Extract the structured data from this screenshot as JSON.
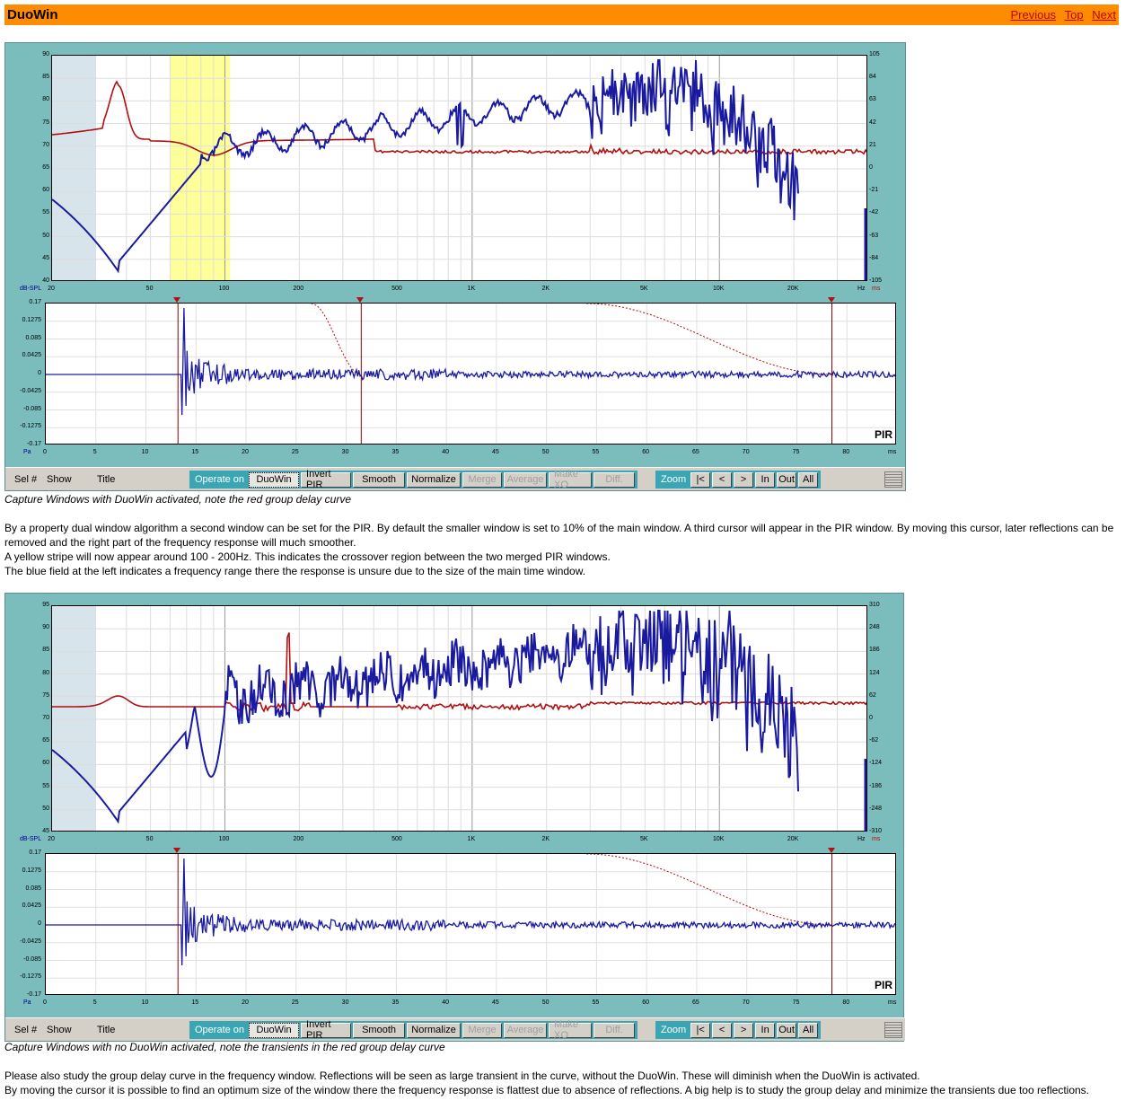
{
  "header": {
    "title": "DuoWin",
    "links": [
      "Previous",
      "Top",
      "Next"
    ]
  },
  "windows": [
    {
      "id": "duowin",
      "freq": {
        "y_left_ticks": [
          "90",
          "85",
          "80",
          "75",
          "70",
          "65",
          "60",
          "55",
          "50",
          "45",
          "40"
        ],
        "y_right_ticks": [
          "105",
          "84",
          "63",
          "42",
          "21",
          "0",
          "-21",
          "-42",
          "-63",
          "-84",
          "-105"
        ],
        "x_ticks": [
          "20",
          "50",
          "100",
          "200",
          "500",
          "1K",
          "2K",
          "5K",
          "10K",
          "20K"
        ],
        "ylabel": "dB-SPL",
        "xunit": "Hz",
        "right_unit": "ms"
      },
      "pir": {
        "y_ticks": [
          "0.17",
          "0.1275",
          "0.085",
          "0.0425",
          "0",
          "-0.0425",
          "-0.085",
          "-0.1275",
          "-0.17"
        ],
        "x_ticks": [
          "0",
          "5",
          "10",
          "15",
          "20",
          "25",
          "30",
          "35",
          "40",
          "45",
          "50",
          "55",
          "60",
          "65",
          "70",
          "75",
          "80"
        ],
        "xunit": "ms",
        "ylabel": "Pa",
        "label": "PIR"
      },
      "caption": "Capture Windows with DuoWin activated, note the red group delay curve"
    },
    {
      "id": "noduowin",
      "freq": {
        "y_left_ticks": [
          "95",
          "90",
          "85",
          "80",
          "75",
          "70",
          "65",
          "60",
          "55",
          "50",
          "45"
        ],
        "y_right_ticks": [
          "310",
          "248",
          "186",
          "124",
          "62",
          "0",
          "-62",
          "-124",
          "-186",
          "-248",
          "-310"
        ],
        "x_ticks": [
          "20",
          "50",
          "100",
          "200",
          "500",
          "1K",
          "2K",
          "5K",
          "10K",
          "20K"
        ],
        "ylabel": "dB-SPL",
        "xunit": "Hz",
        "right_unit": "ms"
      },
      "pir": {
        "y_ticks": [
          "0.17",
          "0.1275",
          "0.085",
          "0.0425",
          "0",
          "-0.0425",
          "-0.085",
          "-0.1275",
          "-0.17"
        ],
        "x_ticks": [
          "0",
          "5",
          "10",
          "15",
          "20",
          "25",
          "30",
          "35",
          "40",
          "45",
          "50",
          "55",
          "60",
          "65",
          "70",
          "75",
          "80"
        ],
        "xunit": "ms",
        "ylabel": "Pa",
        "label": "PIR"
      },
      "caption": "Capture Windows with no DuoWin activated, note the transients in the red group delay curve"
    }
  ],
  "toolbar": {
    "sel": "Sel #",
    "show": "Show",
    "title": "Title",
    "operate_label": "Operate on",
    "operate_buttons": [
      "DuoWin",
      "Invert PIR",
      "Smooth",
      "Normalize",
      "Merge",
      "Average",
      "Make XO",
      "Diff."
    ],
    "zoom_label": "Zoom",
    "zoom_buttons": [
      "|<",
      "<",
      ">",
      "In",
      "Out",
      "All"
    ]
  },
  "paragraphs1": [
    "By a property dual window algorithm a second window can be set for the PIR. By default the smaller window is set to 10% of the main window. A third cursor will appear in the PIR window. By moving this cursor, later reflections can be removed and the right part of the frequency response will much smoother.",
    "A yellow stripe will now appear around 100 - 200Hz. This indicates the crossover region between the two merged PIR windows.",
    "The blue field at the left indicates a frequency range there the response is unsure due to the size of the main time window."
  ],
  "paragraphs2": [
    "Please also study the group delay curve in the frequency window. Reflections will be seen as large transient in the curve, without the DuoWin. These will diminish when the DuoWin is activated.",
    "By moving the cursor it is possible to find an optimum size of the window there the frequency response is flattest due to absence of reflections. A big help is to study the group delay and minimize the transients due too reflections."
  ],
  "colors": {
    "header": "#ff8c00",
    "window_bg": "#7bbcbc",
    "blue_curve": "#1a1aa0",
    "red_curve": "#b01010",
    "yellow_band": "#ffff99",
    "unsure_band": "#d8e4ec"
  }
}
